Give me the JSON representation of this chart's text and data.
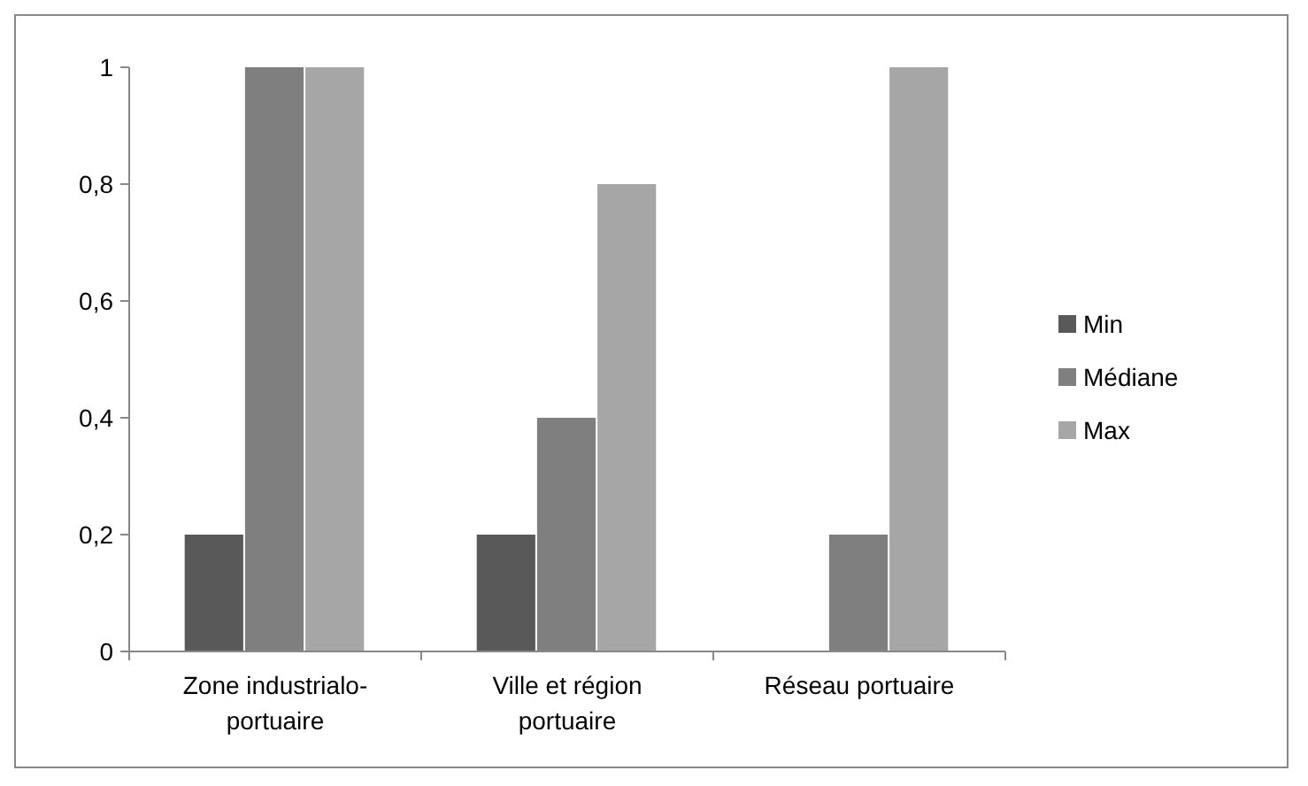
{
  "chart_data": {
    "type": "bar",
    "categories": [
      "Zone industrialo-portuaire",
      "Ville et région portuaire",
      "Réseau portuaire"
    ],
    "series": [
      {
        "name": "Min",
        "color": "#595959",
        "values": [
          0.2,
          0.2,
          0
        ]
      },
      {
        "name": "Médiane",
        "color": "#7f7f7f",
        "values": [
          1,
          0.4,
          0.2
        ]
      },
      {
        "name": "Max",
        "color": "#a6a6a6",
        "values": [
          1,
          0.8,
          1
        ]
      }
    ],
    "ylim": [
      0,
      1
    ],
    "yticks": [
      0,
      {
        "value": 0.2,
        "label": "0,2"
      },
      {
        "value": 0.4,
        "label": "0,4"
      },
      {
        "value": 0.6,
        "label": "0,6"
      },
      {
        "value": 0.8,
        "label": "0,8"
      },
      1
    ],
    "grid": false,
    "legend": "right"
  }
}
